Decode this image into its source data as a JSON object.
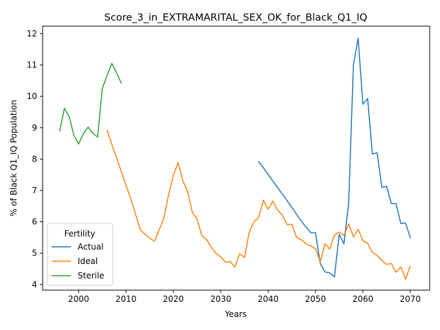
{
  "chart_data": {
    "type": "line",
    "title": "Score_3_in_EXTRAMARITAL_SEX_OK_for_Black_Q1_IQ",
    "xlabel": "Years",
    "ylabel": "% of Black Q1_IQ Population",
    "xlim": [
      1992.4,
      2074.1
    ],
    "ylim": [
      3.82,
      12.24
    ],
    "xticks": [
      2000,
      2010,
      2020,
      2030,
      2040,
      2050,
      2060,
      2070
    ],
    "yticks": [
      4,
      5,
      6,
      7,
      8,
      9,
      10,
      11,
      12
    ],
    "grid": false,
    "legend": {
      "title": "Fertility",
      "position": "lower-left"
    },
    "series": [
      {
        "name": "Actual",
        "color": "#1f77b4",
        "x": [
          2038,
          2039,
          2040,
          2041,
          2042,
          2043,
          2044,
          2045,
          2046,
          2047,
          2048,
          2049,
          2050,
          2051,
          2052,
          2053,
          2054,
          2055,
          2056,
          2057,
          2058,
          2059,
          2060,
          2061,
          2062,
          2063,
          2064,
          2065,
          2066,
          2067,
          2068,
          2069,
          2070
        ],
        "values": [
          7.92,
          7.72,
          7.51,
          7.3,
          7.09,
          6.88,
          6.67,
          6.46,
          6.24,
          6.02,
          5.83,
          5.65,
          5.65,
          4.67,
          4.4,
          4.37,
          4.24,
          5.6,
          5.3,
          6.6,
          11.0,
          11.85,
          9.75,
          9.93,
          8.16,
          8.2,
          7.1,
          7.13,
          6.58,
          6.58,
          5.95,
          5.96,
          5.49
        ]
      },
      {
        "name": "Ideal",
        "color": "#ff7f0e",
        "x": [
          2006,
          2007,
          2008,
          2009,
          2010,
          2011,
          2012,
          2013,
          2014,
          2015,
          2016,
          2017,
          2018,
          2019,
          2020,
          2021,
          2022,
          2023,
          2024,
          2025,
          2026,
          2027,
          2028,
          2029,
          2030,
          2031,
          2032,
          2033,
          2034,
          2035,
          2036,
          2037,
          2038,
          2039,
          2040,
          2041,
          2042,
          2043,
          2044,
          2045,
          2046,
          2047,
          2048,
          2049,
          2050,
          2051,
          2052,
          2053,
          2054,
          2055,
          2056,
          2057,
          2058,
          2059,
          2060,
          2061,
          2062,
          2063,
          2064,
          2065,
          2066,
          2067,
          2068,
          2069,
          2070
        ],
        "values": [
          8.92,
          8.47,
          8.05,
          7.6,
          7.16,
          6.73,
          6.25,
          5.75,
          5.6,
          5.48,
          5.38,
          5.75,
          6.12,
          6.87,
          7.48,
          7.89,
          7.31,
          6.97,
          6.3,
          6.09,
          5.56,
          5.43,
          5.19,
          4.99,
          4.88,
          4.71,
          4.73,
          4.56,
          4.98,
          4.86,
          5.66,
          6.0,
          6.13,
          6.69,
          6.4,
          6.66,
          6.37,
          6.22,
          5.91,
          5.92,
          5.5,
          5.43,
          5.3,
          5.23,
          5.14,
          4.73,
          5.3,
          5.13,
          5.58,
          5.67,
          5.56,
          5.93,
          5.52,
          5.76,
          5.4,
          5.31,
          5.03,
          4.93,
          4.77,
          4.64,
          4.67,
          4.39,
          4.56,
          4.17,
          4.58
        ]
      },
      {
        "name": "Sterile",
        "color": "#2ca02c",
        "x": [
          1996,
          1997,
          1998,
          1999,
          2000,
          2001,
          2002,
          2003,
          2004,
          2005,
          2006,
          2007,
          2008,
          2009
        ],
        "values": [
          8.9,
          9.62,
          9.35,
          8.76,
          8.48,
          8.81,
          9.02,
          8.82,
          8.7,
          10.26,
          10.66,
          11.05,
          10.75,
          10.42
        ]
      }
    ]
  }
}
